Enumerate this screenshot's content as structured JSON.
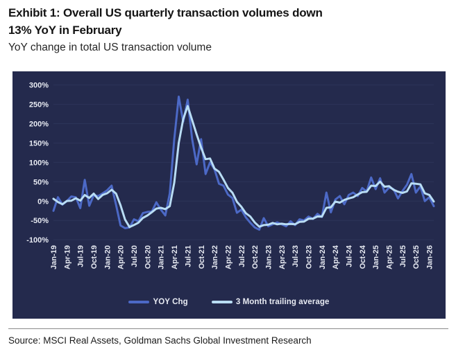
{
  "header": {
    "title_lines": [
      "Exhibit 1: Overall US quarterly transaction volumes down",
      "13% YoY in February"
    ],
    "subtitle": "YoY change in total US transaction volume"
  },
  "footer": {
    "source": "Source: MSCI Real Assets, Goldman Sachs Global Investment Research"
  },
  "colors": {
    "panel_bg": "#242a4d",
    "gridline": "#2c3459",
    "tick_text": "#e7eaf2",
    "yoy_line": "#4c69c6",
    "avg_line": "#b9ddf4",
    "divider": "#8a8a8a"
  },
  "chart_data": {
    "type": "line",
    "grid": "horizontal",
    "legend_position": "bottom",
    "ylim": [
      -100,
      300
    ],
    "y_tick_step": 50,
    "y_tick_labels": [
      "300%",
      "250%",
      "200%",
      "150%",
      "100%",
      "50%",
      "0%",
      "-50%",
      "-100%"
    ],
    "x_tick_every": 3,
    "categories": [
      "Jan-19",
      "Feb-19",
      "Mar-19",
      "Apr-19",
      "May-19",
      "Jun-19",
      "Jul-19",
      "Aug-19",
      "Sep-19",
      "Oct-19",
      "Nov-19",
      "Dec-19",
      "Jan-20",
      "Feb-20",
      "Mar-20",
      "Apr-20",
      "May-20",
      "Jun-20",
      "Jul-20",
      "Aug-20",
      "Sep-20",
      "Oct-20",
      "Nov-20",
      "Dec-20",
      "Jan-21",
      "Feb-21",
      "Mar-21",
      "Apr-21",
      "May-21",
      "Jun-21",
      "Jul-21",
      "Aug-21",
      "Sep-21",
      "Oct-21",
      "Nov-21",
      "Dec-21",
      "Jan-22",
      "Feb-22",
      "Mar-22",
      "Apr-22",
      "May-22",
      "Jun-22",
      "Jul-22",
      "Aug-22",
      "Sep-22",
      "Oct-22",
      "Nov-22",
      "Dec-22",
      "Jan-23",
      "Feb-23",
      "Mar-23",
      "Apr-23",
      "May-23",
      "Jun-23",
      "Jul-23",
      "Aug-23",
      "Sep-23",
      "Oct-23",
      "Nov-23",
      "Dec-23",
      "Jan-24",
      "Feb-24",
      "Mar-24",
      "Apr-24",
      "May-24",
      "Jun-24",
      "Jul-24",
      "Aug-24",
      "Sep-24",
      "Oct-24",
      "Nov-24",
      "Dec-24",
      "Jan-25",
      "Feb-25",
      "Mar-25",
      "Apr-25",
      "May-25",
      "Jun-25",
      "Jul-25",
      "Aug-25",
      "Sep-25",
      "Oct-25",
      "Nov-25",
      "Dec-25",
      "Jan-26",
      "Feb-26"
    ],
    "series": [
      {
        "name": "YOY Chg",
        "color": "#4c69c6",
        "values": [
          -25,
          10,
          -9,
          0,
          12,
          10,
          -18,
          55,
          -12,
          15,
          13,
          20,
          28,
          40,
          -10,
          -63,
          -70,
          -68,
          -47,
          -52,
          -31,
          -28,
          -27,
          -3,
          -22,
          -37,
          20,
          160,
          270,
          205,
          262,
          160,
          95,
          160,
          70,
          100,
          82,
          45,
          40,
          17,
          8,
          -30,
          -22,
          -42,
          -56,
          -68,
          -74,
          -44,
          -65,
          -60,
          -55,
          -60,
          -65,
          -52,
          -62,
          -47,
          -50,
          -40,
          -46,
          -33,
          -41,
          22,
          -29,
          4,
          13,
          -8,
          16,
          22,
          13,
          34,
          25,
          61,
          31,
          59,
          22,
          35,
          31,
          7,
          26,
          42,
          70,
          22,
          38,
          0,
          10,
          -13
        ]
      },
      {
        "name": "3 Month trailing average",
        "color": "#b9ddf4",
        "values": [
          6,
          -2.3,
          -8,
          0.3,
          1,
          7.3,
          1.3,
          15.7,
          8.3,
          19.3,
          5.3,
          16,
          20.3,
          29.3,
          19.3,
          -11,
          -47.7,
          -67,
          -61.7,
          -55.7,
          -43.3,
          -37,
          -28.7,
          -19.3,
          -17.3,
          -20.7,
          -13,
          47.7,
          150,
          211.7,
          245.7,
          209,
          172.3,
          138.3,
          108.3,
          110,
          84,
          75.7,
          55.7,
          34,
          21.7,
          -1.7,
          -14.7,
          -31.3,
          -40,
          -55.3,
          -66,
          -62,
          -61,
          -56.3,
          -60,
          -58.3,
          -60,
          -59,
          -59.7,
          -53.7,
          -53,
          -45.7,
          -45.3,
          -39.7,
          -40,
          -17.3,
          -16,
          -1,
          -4,
          3,
          7,
          10,
          17,
          23,
          24,
          40,
          39,
          50.3,
          37.3,
          38.7,
          29.3,
          24.3,
          21.3,
          25,
          46,
          44.7,
          43.3,
          20,
          16,
          -1
        ]
      }
    ]
  }
}
